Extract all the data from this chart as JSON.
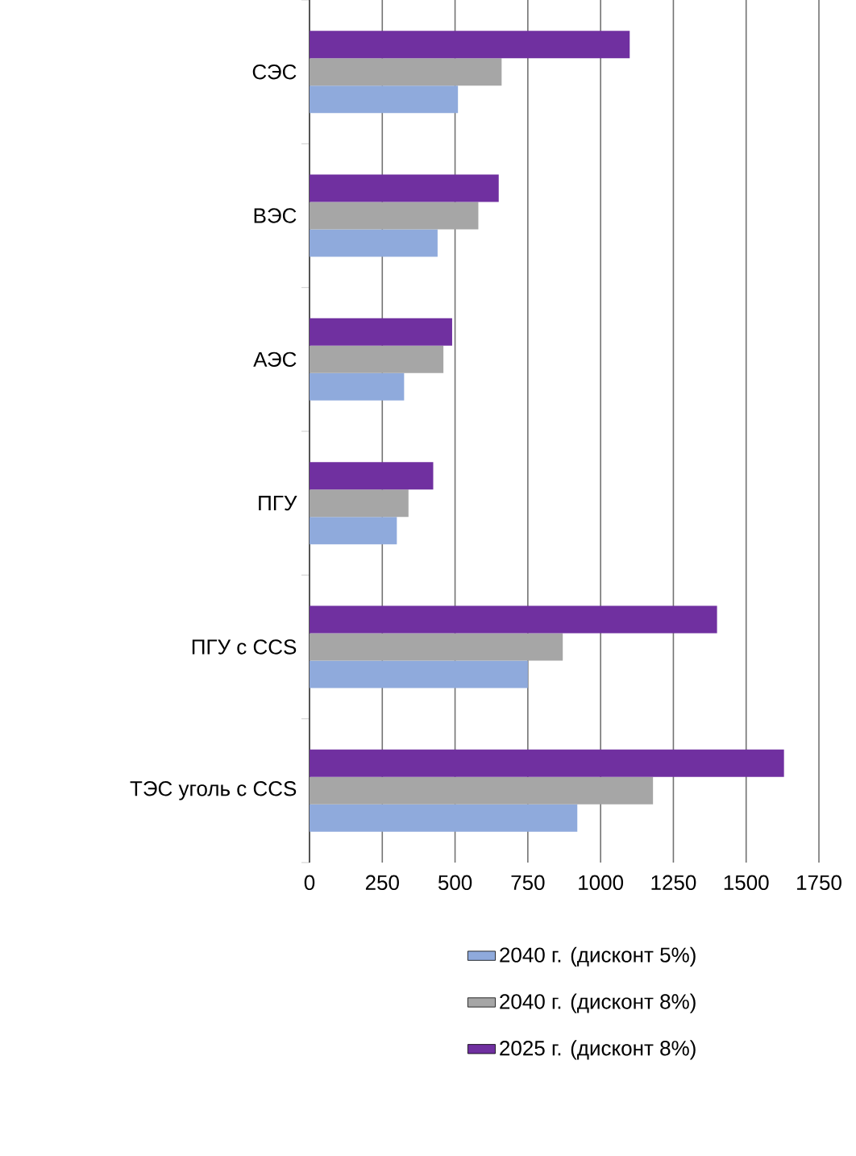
{
  "chart_data": {
    "type": "bar",
    "orientation": "horizontal",
    "categories": [
      "СЭС",
      "ВЭС",
      "АЭС",
      "ПГУ",
      "ПГУ с CCS",
      "ТЭС уголь с CCS"
    ],
    "series": [
      {
        "name": "2040 г. (дисконт 5%)",
        "color": "#8faadc",
        "values": [
          510,
          440,
          325,
          300,
          750,
          920
        ]
      },
      {
        "name": "2040 г. (дисконт 8%)",
        "color": "#a6a6a6",
        "values": [
          660,
          580,
          460,
          340,
          870,
          1180
        ]
      },
      {
        "name": "2025 г. (дисконт 8%)",
        "color": "#7030a0",
        "values": [
          1100,
          650,
          490,
          425,
          1400,
          1630
        ]
      }
    ],
    "xlim": [
      0,
      1750
    ],
    "xticks": [
      0,
      250,
      500,
      750,
      1000,
      1250,
      1500,
      1750
    ],
    "grid": "x",
    "legend": "bottom"
  }
}
